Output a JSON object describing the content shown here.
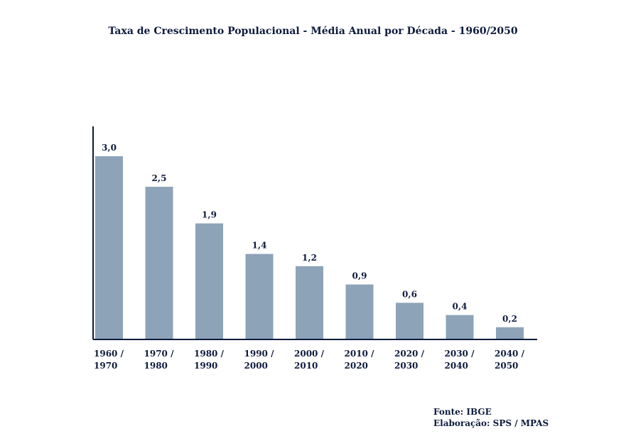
{
  "chart_data": {
    "type": "bar",
    "title": "Taxa de Crescimento Populacional - Média Anual por Década - 1960/2050",
    "categories": [
      [
        "1960 /",
        "1970"
      ],
      [
        "1970 /",
        "1980"
      ],
      [
        "1980 /",
        "1990"
      ],
      [
        "1990 /",
        "2000"
      ],
      [
        "2000 /",
        "2010"
      ],
      [
        "2010 /",
        "2020"
      ],
      [
        "2020 /",
        "2030"
      ],
      [
        "2030 /",
        "2040"
      ],
      [
        "2040 /",
        "2050"
      ]
    ],
    "values": [
      3.0,
      2.5,
      1.9,
      1.4,
      1.2,
      0.9,
      0.6,
      0.4,
      0.2
    ],
    "value_labels": [
      "3,0",
      "2,5",
      "1,9",
      "1,4",
      "1,2",
      "0,9",
      "0,6",
      "0,4",
      "0,2"
    ],
    "xlabel": "",
    "ylabel": "",
    "ylim": [
      0,
      3.0
    ],
    "grid": false,
    "legend": "none",
    "bar_color": "#8da3b8",
    "axis_color": "#0d1b3d",
    "text_color": "#0d1b3d"
  },
  "source": {
    "fonte": "Fonte: IBGE",
    "elaboracao": "Elaboração: SPS / MPAS"
  }
}
